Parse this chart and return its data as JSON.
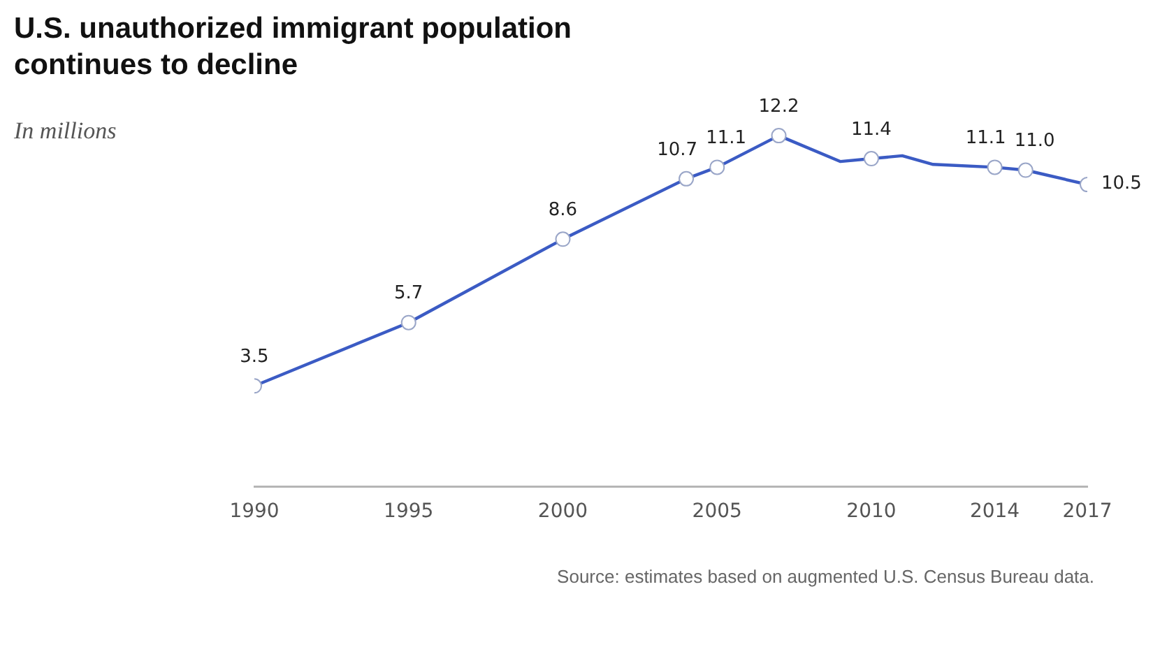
{
  "chart_data": {
    "type": "line",
    "title": "U.S. unauthorized immigrant population continues to decline",
    "subtitle": "In millions",
    "x": [
      1990,
      1995,
      2000,
      2004,
      2005,
      2007,
      2009,
      2010,
      2011,
      2012,
      2014,
      2015,
      2017
    ],
    "series": [
      {
        "color": "#3b5bc4",
        "values": [
          3.5,
          5.7,
          8.6,
          10.7,
          11.1,
          12.2,
          11.3,
          11.4,
          11.5,
          11.2,
          11.1,
          11.0,
          10.5
        ],
        "value_labels": [
          "3.5",
          "5.7",
          "8.6",
          "10.7",
          "11.1",
          "12.2",
          null,
          "11.4",
          null,
          null,
          "11.1",
          "11.0",
          "10.5"
        ]
      }
    ],
    "xlim": [
      1990,
      2017
    ],
    "xticks": [
      1990,
      1995,
      2000,
      2005,
      2010,
      2014,
      2017
    ],
    "tick_labels": "x",
    "grid": false,
    "legend": false,
    "marker": "circle",
    "annotations": [
      "Source: estimates based on augmented U.S. Census Bureau data."
    ]
  }
}
